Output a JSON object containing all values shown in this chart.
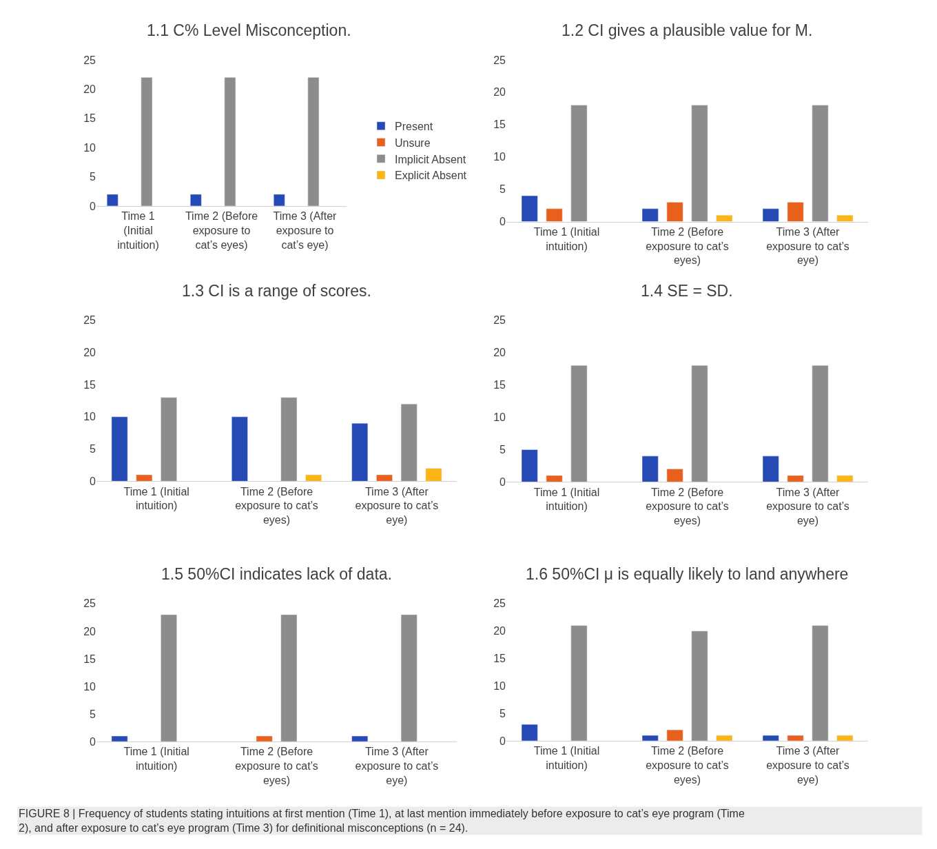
{
  "chart_data": [
    {
      "type": "bar",
      "title": "1.1 C% Level Misconception.",
      "categories": [
        "Time 1 (Initial intuition)",
        "Time 2 (Before exposure to cat’s eyes)",
        "Time 3 (After exposure to cat’s eye)"
      ],
      "series": [
        {
          "name": "Present",
          "color": "#2549b5",
          "values": [
            2,
            2,
            2
          ]
        },
        {
          "name": "Unsure",
          "color": "#e8601c",
          "values": [
            null,
            null,
            null
          ]
        },
        {
          "name": "Implicit Absent",
          "color": "#8c8c8c",
          "values": [
            22,
            22,
            22
          ]
        },
        {
          "name": "Explicit Absent",
          "color": "#fdb515",
          "values": [
            null,
            null,
            null
          ]
        }
      ],
      "ylim": [
        0,
        25
      ],
      "yticks": [
        0,
        5,
        10,
        15,
        20,
        25
      ],
      "grid": false,
      "legend": "right"
    },
    {
      "type": "bar",
      "title": "1.2 CI gives a plausible value for M.",
      "categories": [
        "Time 1 (Initial intuition)",
        "Time 2 (Before exposure to cat’s eyes)",
        "Time 3 (After exposure to cat’s eye)"
      ],
      "series": [
        {
          "color": "#2549b5",
          "values": [
            4,
            2,
            2
          ]
        },
        {
          "color": "#e8601c",
          "values": [
            2,
            3,
            3
          ]
        },
        {
          "color": "#8c8c8c",
          "values": [
            18,
            18,
            18
          ]
        },
        {
          "color": "#fdb515",
          "values": [
            null,
            1,
            1
          ]
        }
      ],
      "ylim": [
        0,
        25
      ],
      "yticks": [
        0,
        5,
        10,
        15,
        20,
        25
      ],
      "grid": false,
      "legend": false
    },
    {
      "type": "bar",
      "title": "1.3 CI is a range of scores.",
      "categories": [
        "Time 1 (Initial intuition)",
        "Time 2 (Before exposure to cat’s eyes)",
        "Time 3 (After exposure to cat’s eye)"
      ],
      "series": [
        {
          "color": "#2549b5",
          "values": [
            10,
            10,
            9
          ]
        },
        {
          "color": "#e8601c",
          "values": [
            1,
            null,
            1
          ]
        },
        {
          "color": "#8c8c8c",
          "values": [
            13,
            13,
            12
          ]
        },
        {
          "color": "#fdb515",
          "values": [
            null,
            1,
            2
          ]
        }
      ],
      "ylim": [
        0,
        25
      ],
      "yticks": [
        0,
        5,
        10,
        15,
        20,
        25
      ],
      "grid": false,
      "legend": false
    },
    {
      "type": "bar",
      "title": "1.4 SE = SD.",
      "categories": [
        "Time 1 (Initial intuition)",
        "Time 2 (Before exposure to cat’s eyes)",
        "Time 3 (After exposure to cat’s eye)"
      ],
      "series": [
        {
          "color": "#2549b5",
          "values": [
            5,
            4,
            4
          ]
        },
        {
          "color": "#e8601c",
          "values": [
            1,
            2,
            1
          ]
        },
        {
          "color": "#8c8c8c",
          "values": [
            18,
            18,
            18
          ]
        },
        {
          "color": "#fdb515",
          "values": [
            null,
            null,
            1
          ]
        }
      ],
      "ylim": [
        0,
        25
      ],
      "yticks": [
        0,
        5,
        10,
        15,
        20,
        25
      ],
      "grid": false,
      "legend": false
    },
    {
      "type": "bar",
      "title": "1.5 50%CI indicates lack of data.",
      "categories": [
        "Time 1 (Initial intuition)",
        "Time 2 (Before exposure to cat’s eyes)",
        "Time 3 (After exposure to cat’s eye)"
      ],
      "series": [
        {
          "color": "#2549b5",
          "values": [
            1,
            null,
            1
          ]
        },
        {
          "color": "#e8601c",
          "values": [
            null,
            1,
            null
          ]
        },
        {
          "color": "#8c8c8c",
          "values": [
            23,
            23,
            23
          ]
        },
        {
          "color": "#fdb515",
          "values": [
            null,
            null,
            null
          ]
        }
      ],
      "ylim": [
        0,
        25
      ],
      "yticks": [
        0,
        5,
        10,
        15,
        20,
        25
      ],
      "grid": false,
      "legend": false
    },
    {
      "type": "bar",
      "title": "1.6 50%CI μ is equally likely to land anywhere",
      "categories": [
        "Time 1 (Initial intuition)",
        "Time 2 (Before exposure to cat’s eyes)",
        "Time 3 (After exposure to cat’s eye)"
      ],
      "series": [
        {
          "color": "#2549b5",
          "values": [
            3,
            1,
            1
          ]
        },
        {
          "color": "#e8601c",
          "values": [
            null,
            2,
            1
          ]
        },
        {
          "color": "#8c8c8c",
          "values": [
            21,
            20,
            21
          ]
        },
        {
          "color": "#fdb515",
          "values": [
            null,
            1,
            1
          ]
        }
      ],
      "ylim": [
        0,
        25
      ],
      "yticks": [
        0,
        5,
        10,
        15,
        20,
        25
      ],
      "grid": false,
      "legend": false,
      "annotations": [
        "FIGURE 8 | Frequency of students stating intuitions at first mention (Time 1), at last mention immediately before exposure to cat’s eye program (Time 2), and after exposure to cat’s eye program (Time 3) for definitional misconceptions (n = 24)."
      ]
    }
  ]
}
